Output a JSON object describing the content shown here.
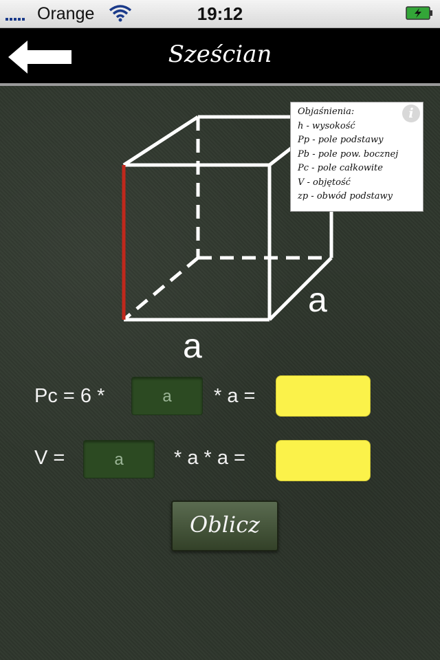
{
  "status_bar": {
    "carrier": "Orange",
    "time": "19:12",
    "icons": [
      "signal-icon",
      "wifi-icon",
      "battery-charging-icon"
    ]
  },
  "nav": {
    "title": "Sześcian",
    "back_icon": "back-arrow-icon"
  },
  "diagram": {
    "edge_label_front": "a",
    "edge_label_side": "a",
    "highlight_color": "#c0281c"
  },
  "legend": {
    "info_icon": "info-icon",
    "info_glyph": "i",
    "lines": [
      "Objaśnienia:",
      "h - wysokość",
      "Pp - pole podstawy",
      "Pb - pole pow. bocznej",
      "Pc - pole całkowite",
      "V - objętość",
      "zp - obwód podstawy"
    ]
  },
  "formulas": {
    "pc_prefix": "Pc = 6 *",
    "pc_suffix": "* a =",
    "pc_input_placeholder": "a",
    "v_prefix": "V =",
    "v_suffix": "* a * a =",
    "v_input_placeholder": "a"
  },
  "calc_button": {
    "label": "Oblicz"
  },
  "colors": {
    "result_field": "#fbf24a",
    "input_field": "#2c4a22",
    "board": "#2e362c"
  }
}
